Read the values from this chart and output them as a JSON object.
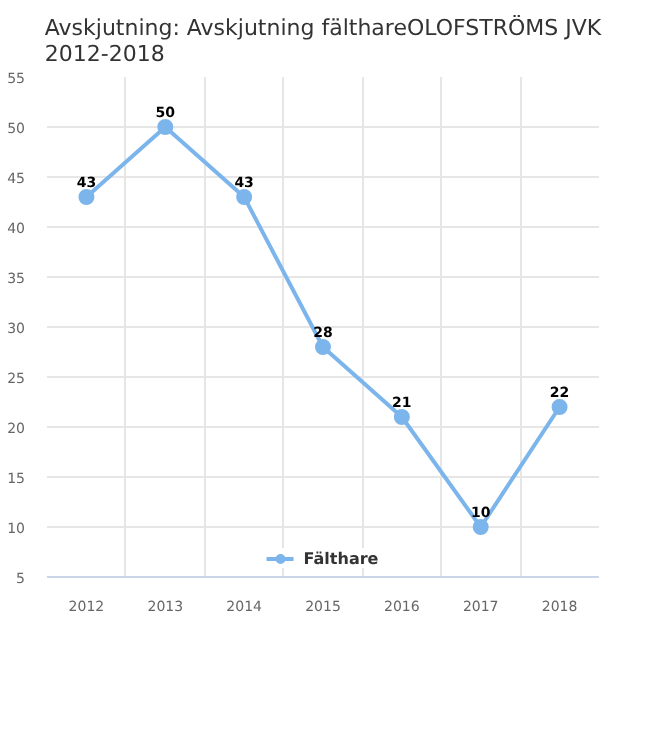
{
  "chart_data": {
    "type": "line",
    "title": "Avskjutning: Avskjutning fälthareOLOFSTRÖMS JVK 2012-2018",
    "categories": [
      "2012",
      "2013",
      "2014",
      "2015",
      "2016",
      "2017",
      "2018"
    ],
    "series": [
      {
        "name": "Fälthare",
        "color": "#7cb5ec",
        "values": [
          43,
          50,
          43,
          28,
          21,
          10,
          22
        ]
      }
    ],
    "ylim": [
      5,
      55
    ],
    "yticks": [
      5,
      10,
      15,
      20,
      25,
      30,
      35,
      40,
      45,
      50,
      55
    ],
    "grid": true,
    "legend": "bottom",
    "marker": "circle",
    "line_style": "solid",
    "data_labels": true
  }
}
